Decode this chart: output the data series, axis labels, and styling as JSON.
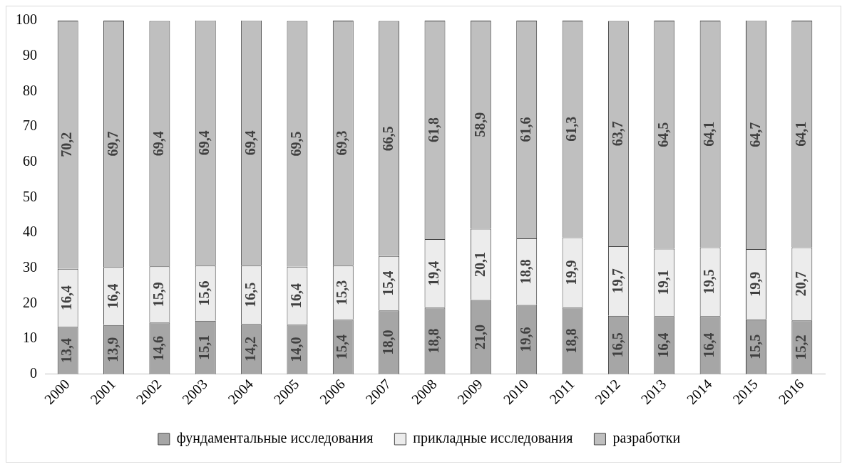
{
  "chart_data": {
    "type": "bar",
    "stacked": true,
    "categories": [
      "2000",
      "2001",
      "2002",
      "2003",
      "2004",
      "2005",
      "2006",
      "2007",
      "2008",
      "2009",
      "2010",
      "2011",
      "2012",
      "2013",
      "2014",
      "2015",
      "2016"
    ],
    "series": [
      {
        "name": "фундаментальные исследования",
        "color": "#a6a6a6",
        "values": [
          13.4,
          13.9,
          14.6,
          15.1,
          14.2,
          14.0,
          15.4,
          18.0,
          18.8,
          21.0,
          19.6,
          18.8,
          16.5,
          16.4,
          16.4,
          15.5,
          15.2
        ],
        "value_labels": [
          "13,4",
          "13,9",
          "14,6",
          "15,1",
          "14,2",
          "14,0",
          "15,4",
          "18,0",
          "18,8",
          "21,0",
          "19,6",
          "18,8",
          "16,5",
          "16,4",
          "16,4",
          "15,5",
          "15,2"
        ]
      },
      {
        "name": "прикладные исследования",
        "color": "#ececec",
        "values": [
          16.4,
          16.4,
          15.9,
          15.6,
          16.5,
          16.4,
          15.3,
          15.4,
          19.4,
          20.1,
          18.8,
          19.9,
          19.7,
          19.1,
          19.5,
          19.9,
          20.7
        ],
        "value_labels": [
          "16,4",
          "16,4",
          "15,9",
          "15,6",
          "16,5",
          "16,4",
          "15,3",
          "15,4",
          "19,4",
          "20,1",
          "18,8",
          "19,9",
          "19,7",
          "19,1",
          "19,5",
          "19,9",
          "20,7"
        ]
      },
      {
        "name": "разработки",
        "color": "#bfbfbf",
        "values": [
          70.2,
          69.7,
          69.4,
          69.4,
          69.4,
          69.5,
          69.3,
          66.5,
          61.8,
          58.9,
          61.6,
          61.3,
          63.7,
          64.5,
          64.1,
          64.7,
          64.1
        ],
        "value_labels": [
          "70,2",
          "69,7",
          "69,4",
          "69,4",
          "69,4",
          "69,5",
          "69,3",
          "66,5",
          "61,8",
          "58,9",
          "61,6",
          "61,3",
          "63,7",
          "64,5",
          "64,1",
          "64,7",
          "64,1"
        ]
      }
    ],
    "ylim": [
      0,
      100
    ],
    "yticks": [
      0,
      10,
      20,
      30,
      40,
      50,
      60,
      70,
      80,
      90,
      100
    ],
    "grid": false,
    "legend": "bottom"
  }
}
